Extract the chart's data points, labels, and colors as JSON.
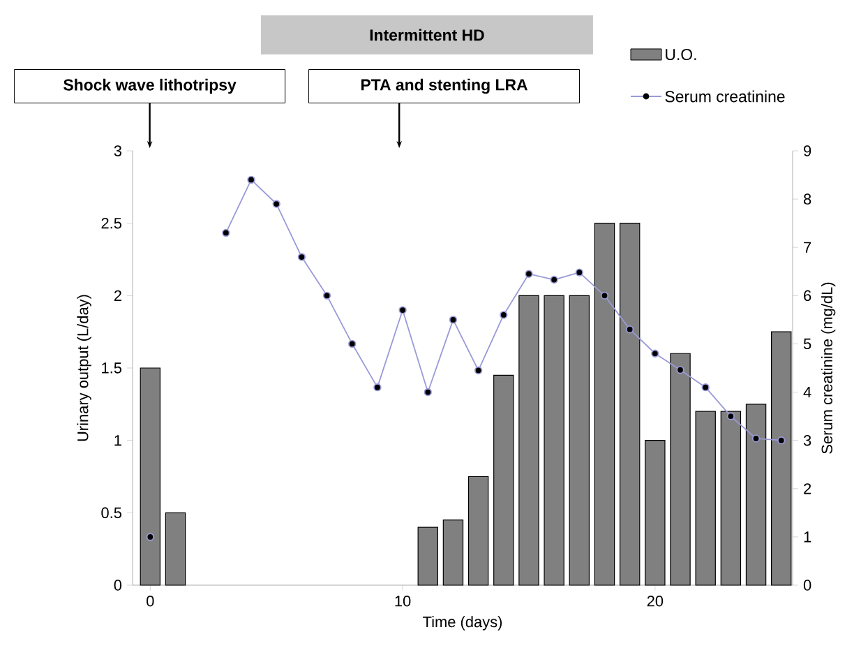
{
  "chart_data": {
    "type": "bar",
    "xlabel": "Time (days)",
    "ylabel": "Urinary output (L/day)",
    "y2label": "Serum creatinine (mg/dL)",
    "x": [
      0,
      1,
      2,
      3,
      4,
      5,
      6,
      7,
      8,
      9,
      10,
      11,
      12,
      13,
      14,
      15,
      16,
      17,
      18,
      19,
      20,
      21,
      22,
      23,
      24,
      25
    ],
    "series": [
      {
        "name": "U.O.",
        "type": "bar",
        "color": "#808080",
        "values": [
          1.5,
          0.5,
          null,
          null,
          null,
          null,
          null,
          null,
          null,
          null,
          null,
          0.4,
          0.45,
          0.75,
          1.45,
          2,
          2,
          2,
          2.5,
          2.5,
          1.0,
          1.6,
          1.2,
          1.2,
          1.25,
          1.75
        ]
      },
      {
        "name": "Serum creatinine",
        "type": "line",
        "axis": "y2",
        "color": "#9a9ad8",
        "marker": "circle",
        "values": [
          1.0,
          null,
          null,
          7.3,
          8.4,
          7.9,
          6.8,
          6.0,
          5.0,
          4.1,
          5.7,
          4.0,
          5.5,
          4.45,
          5.6,
          6.45,
          6.33,
          6.48,
          6.0,
          5.3,
          4.8,
          4.46,
          4.1,
          3.5,
          3.04,
          3.0
        ]
      }
    ],
    "xlim": [
      -0.7,
      25.45
    ],
    "xticks": [
      0,
      10,
      20
    ],
    "ylim": [
      0,
      3
    ],
    "yticks": [
      0,
      0.5,
      1,
      1.5,
      2,
      2.5,
      3
    ],
    "y2lim": [
      0,
      9
    ],
    "y2ticks": [
      0,
      1,
      2,
      3,
      4,
      5,
      6,
      7,
      8,
      9
    ],
    "legend": "top right",
    "annotations": [
      "Intermittent HD",
      "Shock wave lithotripsy",
      "PTA and stenting LRA"
    ]
  }
}
